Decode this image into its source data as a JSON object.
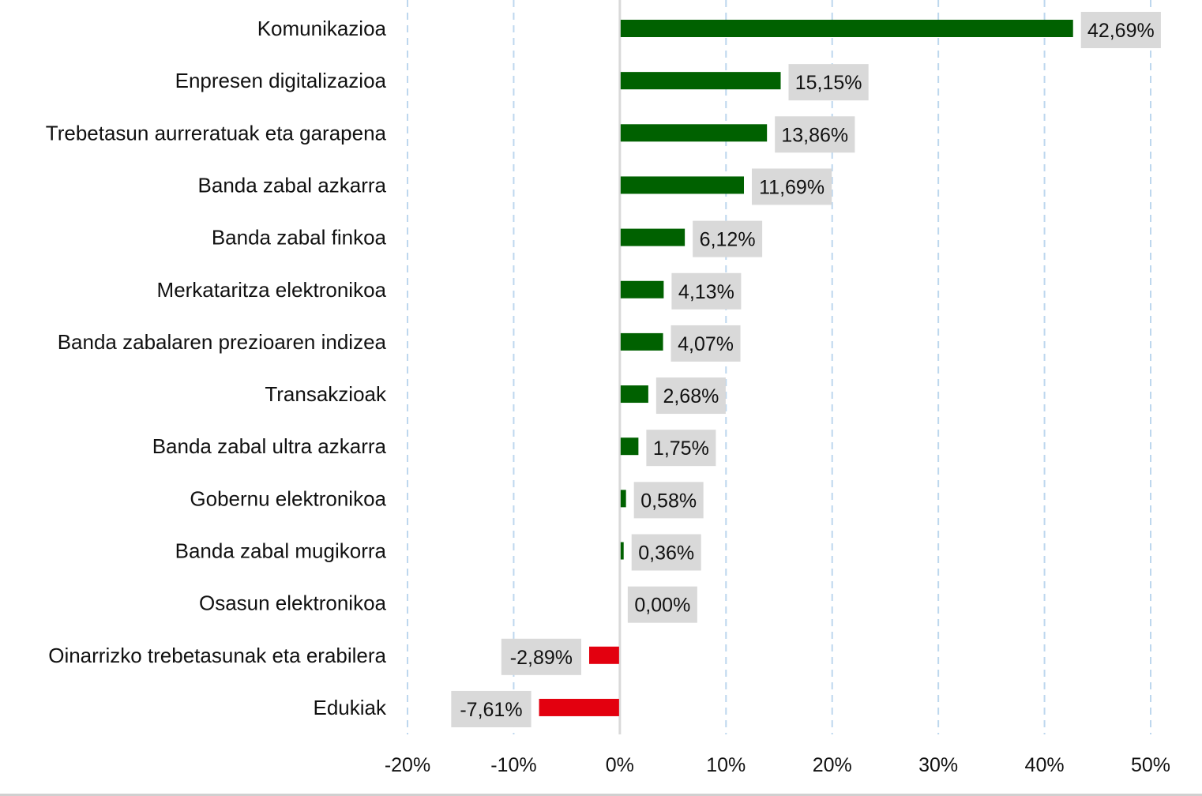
{
  "chart_data": {
    "type": "bar",
    "orientation": "horizontal",
    "categories": [
      "Komunikazioa",
      "Enpresen digitalizazioa",
      "Trebetasun aurreratuak eta garapena",
      "Banda zabal azkarra",
      "Banda zabal finkoa",
      "Merkataritza elektronikoa",
      "Banda zabalaren prezioaren indizea",
      "Transakzioak",
      "Banda zabal ultra azkarra",
      "Gobernu elektronikoa",
      "Banda zabal mugikorra",
      "Osasun elektronikoa",
      "Oinarrizko trebetasunak eta erabilera",
      "Edukiak"
    ],
    "values": [
      42.69,
      15.15,
      13.86,
      11.69,
      6.12,
      4.13,
      4.07,
      2.68,
      1.75,
      0.58,
      0.36,
      0.0,
      -2.89,
      -7.61
    ],
    "data_labels": [
      "42,69%",
      "15,15%",
      "13,86%",
      "11,69%",
      "6,12%",
      "4,13%",
      "4,07%",
      "2,68%",
      "1,75%",
      "0,58%",
      "0,36%",
      "0,00%",
      "-2,89%",
      "-7,61%"
    ],
    "xlim": [
      -20,
      50
    ],
    "x_ticks": [
      -20,
      -10,
      0,
      10,
      20,
      30,
      40,
      50
    ],
    "x_tick_labels": [
      "-20%",
      "-10%",
      "0%",
      "10%",
      "20%",
      "30%",
      "40%",
      "50%"
    ],
    "grid": "vertical dashed",
    "colors": {
      "positive": "#006100",
      "negative": "#e3000f",
      "label_box": "#d9d9d9",
      "grid": "#bdd7ee",
      "zero_line": "#d9d9d9"
    }
  }
}
